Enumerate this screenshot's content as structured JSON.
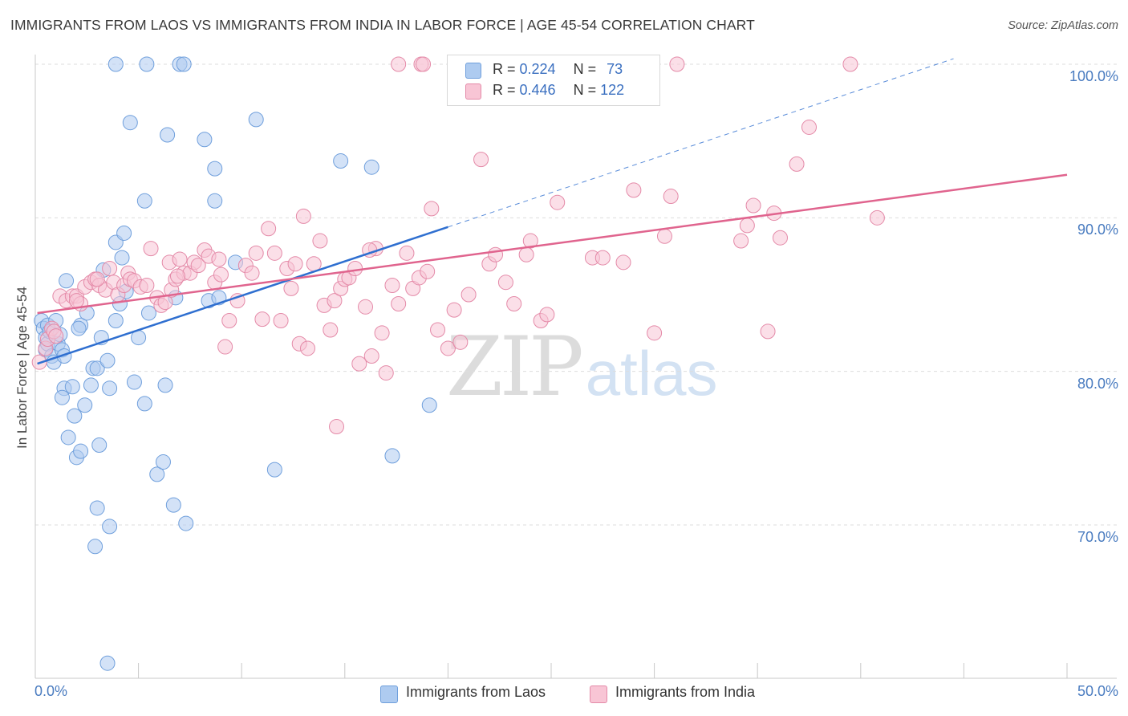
{
  "title": "IMMIGRANTS FROM LAOS VS IMMIGRANTS FROM INDIA IN LABOR FORCE | AGE 45-54 CORRELATION CHART",
  "source": "Source: ZipAtlas.com",
  "watermark": {
    "zip": "ZIP",
    "atlas": "atlas"
  },
  "legend": {
    "laos": {
      "r_label": "R = ",
      "r_value": "0.224",
      "n_label": "N = ",
      "n_value": "73"
    },
    "india": {
      "r_label": "R = ",
      "r_value": "0.446",
      "n_label": "N = ",
      "n_value": "122"
    }
  },
  "colors": {
    "laos_fill": "#aecbf0",
    "laos_stroke": "#6f9fdc",
    "laos_line": "#2f6fd0",
    "india_fill": "#f8c5d5",
    "india_stroke": "#e48aa8",
    "india_line": "#e0648e",
    "grid": "#dddddd",
    "axis_label": "#4a7cc0"
  },
  "chart_data": {
    "type": "scatter",
    "title": "IMMIGRANTS FROM LAOS VS IMMIGRANTS FROM INDIA IN LABOR FORCE | AGE 45-54 CORRELATION CHART",
    "xlabel": "",
    "ylabel": "In Labor Force | Age 45-54",
    "xlim": [
      0,
      50
    ],
    "ylim": [
      60,
      100
    ],
    "x_tick_labels": [
      "0.0%",
      "50.0%"
    ],
    "y_ticks": [
      70,
      80,
      90,
      100
    ],
    "y_tick_labels": [
      "70.0%",
      "80.0%",
      "90.0%",
      "100.0%"
    ],
    "grid": true,
    "legend_position": "top-center",
    "series": [
      {
        "name": "Immigrants from Laos",
        "r": 0.224,
        "n": 73,
        "trend": {
          "x0": 0.1,
          "y0": 80.5,
          "x1": 20.0,
          "y1": 89.4,
          "dashed_to_x": 44.5
        },
        "points": [
          [
            0.3,
            83.3
          ],
          [
            0.4,
            82.8
          ],
          [
            0.5,
            82.2
          ],
          [
            0.5,
            81.4
          ],
          [
            0.6,
            83.0
          ],
          [
            0.6,
            81.8
          ],
          [
            0.7,
            82.6
          ],
          [
            0.8,
            81.0
          ],
          [
            0.9,
            80.6
          ],
          [
            1.0,
            83.3
          ],
          [
            1.1,
            81.8
          ],
          [
            1.3,
            81.4
          ],
          [
            1.4,
            81.0
          ],
          [
            1.4,
            78.9
          ],
          [
            1.3,
            78.3
          ],
          [
            1.5,
            85.9
          ],
          [
            1.6,
            75.7
          ],
          [
            1.8,
            79.0
          ],
          [
            1.9,
            77.1
          ],
          [
            2.0,
            74.4
          ],
          [
            2.2,
            74.8
          ],
          [
            2.2,
            83.0
          ],
          [
            2.4,
            77.8
          ],
          [
            2.5,
            83.8
          ],
          [
            2.7,
            79.1
          ],
          [
            2.8,
            80.2
          ],
          [
            3.0,
            80.2
          ],
          [
            3.1,
            75.2
          ],
          [
            3.2,
            82.2
          ],
          [
            3.5,
            80.7
          ],
          [
            3.6,
            78.9
          ],
          [
            3.0,
            71.1
          ],
          [
            3.6,
            69.9
          ],
          [
            2.9,
            68.6
          ],
          [
            3.3,
            86.6
          ],
          [
            3.9,
            83.3
          ],
          [
            3.9,
            88.4
          ],
          [
            4.3,
            89.0
          ],
          [
            4.2,
            87.4
          ],
          [
            4.4,
            85.2
          ],
          [
            4.6,
            96.2
          ],
          [
            4.8,
            79.3
          ],
          [
            5.0,
            82.2
          ],
          [
            5.3,
            91.1
          ],
          [
            5.3,
            77.9
          ],
          [
            5.5,
            83.8
          ],
          [
            5.9,
            73.3
          ],
          [
            6.2,
            74.1
          ],
          [
            6.3,
            79.1
          ],
          [
            6.4,
            95.4
          ],
          [
            6.7,
            71.3
          ],
          [
            6.8,
            84.8
          ],
          [
            7.3,
            70.1
          ],
          [
            8.2,
            95.1
          ],
          [
            8.4,
            84.6
          ],
          [
            8.7,
            93.2
          ],
          [
            8.7,
            91.1
          ],
          [
            8.9,
            84.8
          ],
          [
            9.7,
            87.1
          ],
          [
            10.7,
            96.4
          ],
          [
            11.6,
            73.6
          ],
          [
            14.8,
            93.7
          ],
          [
            16.3,
            93.3
          ],
          [
            17.3,
            74.5
          ],
          [
            19.1,
            77.8
          ],
          [
            3.9,
            100.0
          ],
          [
            5.4,
            100.0
          ],
          [
            7.0,
            100.0
          ],
          [
            7.2,
            100.0
          ],
          [
            3.5,
            61.0
          ],
          [
            2.1,
            82.8
          ],
          [
            1.2,
            82.4
          ],
          [
            4.1,
            84.4
          ]
        ]
      },
      {
        "name": "Immigrants from India",
        "r": 0.446,
        "n": 122,
        "trend": {
          "x0": 0.1,
          "y0": 83.8,
          "x1": 50.0,
          "y1": 92.8
        },
        "points": [
          [
            0.2,
            80.6
          ],
          [
            0.5,
            81.5
          ],
          [
            0.6,
            82.1
          ],
          [
            0.8,
            82.8
          ],
          [
            0.9,
            82.6
          ],
          [
            1.0,
            82.3
          ],
          [
            1.2,
            84.9
          ],
          [
            1.5,
            84.6
          ],
          [
            1.8,
            84.9
          ],
          [
            2.0,
            84.9
          ],
          [
            2.2,
            84.4
          ],
          [
            2.4,
            85.5
          ],
          [
            2.7,
            85.8
          ],
          [
            2.9,
            86.0
          ],
          [
            3.1,
            85.6
          ],
          [
            3.4,
            85.3
          ],
          [
            3.6,
            86.7
          ],
          [
            3.8,
            85.8
          ],
          [
            4.0,
            85.0
          ],
          [
            4.3,
            85.6
          ],
          [
            4.5,
            86.4
          ],
          [
            4.6,
            86.0
          ],
          [
            4.8,
            85.9
          ],
          [
            5.1,
            85.5
          ],
          [
            5.4,
            85.6
          ],
          [
            5.6,
            88.0
          ],
          [
            5.9,
            84.8
          ],
          [
            6.1,
            84.3
          ],
          [
            6.3,
            84.5
          ],
          [
            6.5,
            87.1
          ],
          [
            6.6,
            85.3
          ],
          [
            6.8,
            86.0
          ],
          [
            7.0,
            87.3
          ],
          [
            7.2,
            86.4
          ],
          [
            7.5,
            86.4
          ],
          [
            7.7,
            87.1
          ],
          [
            7.9,
            86.9
          ],
          [
            8.2,
            87.9
          ],
          [
            8.4,
            87.5
          ],
          [
            8.7,
            85.8
          ],
          [
            8.9,
            87.3
          ],
          [
            9.2,
            81.6
          ],
          [
            9.4,
            83.3
          ],
          [
            9.8,
            84.6
          ],
          [
            10.2,
            86.9
          ],
          [
            10.5,
            86.4
          ],
          [
            10.7,
            87.7
          ],
          [
            11.0,
            83.4
          ],
          [
            11.3,
            89.3
          ],
          [
            11.6,
            87.7
          ],
          [
            11.9,
            83.3
          ],
          [
            12.2,
            86.7
          ],
          [
            12.4,
            85.4
          ],
          [
            12.8,
            81.8
          ],
          [
            13.0,
            90.1
          ],
          [
            13.2,
            81.5
          ],
          [
            13.5,
            87.0
          ],
          [
            13.8,
            88.5
          ],
          [
            14.0,
            84.3
          ],
          [
            14.3,
            82.7
          ],
          [
            14.5,
            84.6
          ],
          [
            14.8,
            85.4
          ],
          [
            15.0,
            86.0
          ],
          [
            15.2,
            86.1
          ],
          [
            15.5,
            86.7
          ],
          [
            15.7,
            80.5
          ],
          [
            16.0,
            84.2
          ],
          [
            16.3,
            81.0
          ],
          [
            16.5,
            88.0
          ],
          [
            16.8,
            82.5
          ],
          [
            17.0,
            79.9
          ],
          [
            17.3,
            85.6
          ],
          [
            17.6,
            84.4
          ],
          [
            18.0,
            87.7
          ],
          [
            18.3,
            85.4
          ],
          [
            18.6,
            86.1
          ],
          [
            19.0,
            86.5
          ],
          [
            19.2,
            90.6
          ],
          [
            19.5,
            82.7
          ],
          [
            20.0,
            81.5
          ],
          [
            20.3,
            84.0
          ],
          [
            20.6,
            81.9
          ],
          [
            21.0,
            85.0
          ],
          [
            21.6,
            93.8
          ],
          [
            22.0,
            87.0
          ],
          [
            22.3,
            87.6
          ],
          [
            22.8,
            85.8
          ],
          [
            23.2,
            84.4
          ],
          [
            23.8,
            87.6
          ],
          [
            24.0,
            88.5
          ],
          [
            24.5,
            83.3
          ],
          [
            24.8,
            83.7
          ],
          [
            25.3,
            91.0
          ],
          [
            27.0,
            87.4
          ],
          [
            27.5,
            87.4
          ],
          [
            28.5,
            87.1
          ],
          [
            29.0,
            91.8
          ],
          [
            30.0,
            82.5
          ],
          [
            30.5,
            88.8
          ],
          [
            30.8,
            91.4
          ],
          [
            34.2,
            88.5
          ],
          [
            34.5,
            89.5
          ],
          [
            34.8,
            90.8
          ],
          [
            35.5,
            82.6
          ],
          [
            35.8,
            90.3
          ],
          [
            36.1,
            88.7
          ],
          [
            36.9,
            93.5
          ],
          [
            37.5,
            95.9
          ],
          [
            40.8,
            90.0
          ],
          [
            17.6,
            100.0
          ],
          [
            18.7,
            100.0
          ],
          [
            18.8,
            100.0
          ],
          [
            31.1,
            100.0
          ],
          [
            39.5,
            100.0
          ],
          [
            14.6,
            76.4
          ],
          [
            3.0,
            86.0
          ],
          [
            2.0,
            84.6
          ],
          [
            6.9,
            86.2
          ],
          [
            9.0,
            86.3
          ],
          [
            12.6,
            87.0
          ],
          [
            16.2,
            87.9
          ]
        ]
      }
    ]
  }
}
